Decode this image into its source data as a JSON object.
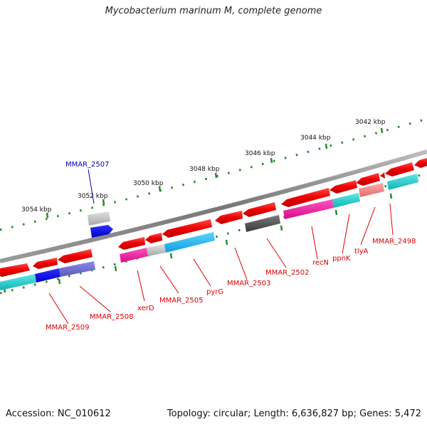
{
  "header": {
    "title": "Mycobacterium marinum M, complete genome"
  },
  "footer": {
    "accession": "Accession: NC_010612",
    "summary": "Topology: circular; Length: 6,636,827 bp; Genes: 5,472"
  },
  "scale": {
    "ticks": [
      "3042 kbp",
      "3044 kbp",
      "3046 kbp",
      "3048 kbp",
      "3050 kbp",
      "3052 kbp",
      "3054 kbp"
    ]
  },
  "colors": {
    "backbone": "#888888",
    "tick": "#2a8a2a",
    "gene_forward": "#ff0000",
    "label_red": "#dd0000",
    "label_blue": "#0000bb"
  },
  "gene_labels": [
    {
      "id": "MMAR_2507",
      "text": "MMAR_2507",
      "color": "blue"
    },
    {
      "id": "MMAR_2509",
      "text": "MMAR_2509",
      "color": "red"
    },
    {
      "id": "MMAR_2508",
      "text": "MMAR_2508",
      "color": "red"
    },
    {
      "id": "xerD",
      "text": "xerD",
      "color": "red"
    },
    {
      "id": "MMAR_2505",
      "text": "MMAR_2505",
      "color": "red"
    },
    {
      "id": "pyrG",
      "text": "pyrG",
      "color": "red"
    },
    {
      "id": "MMAR_2503",
      "text": "MMAR_2503",
      "color": "red"
    },
    {
      "id": "MMAR_2502",
      "text": "MMAR_2502",
      "color": "red"
    },
    {
      "id": "recN",
      "text": "recN",
      "color": "red"
    },
    {
      "id": "ppnK",
      "text": "ppnK",
      "color": "red"
    },
    {
      "id": "tlyA",
      "text": "tlyA",
      "color": "red"
    },
    {
      "id": "MMAR_2498",
      "text": "MMAR_2498",
      "color": "red"
    }
  ]
}
